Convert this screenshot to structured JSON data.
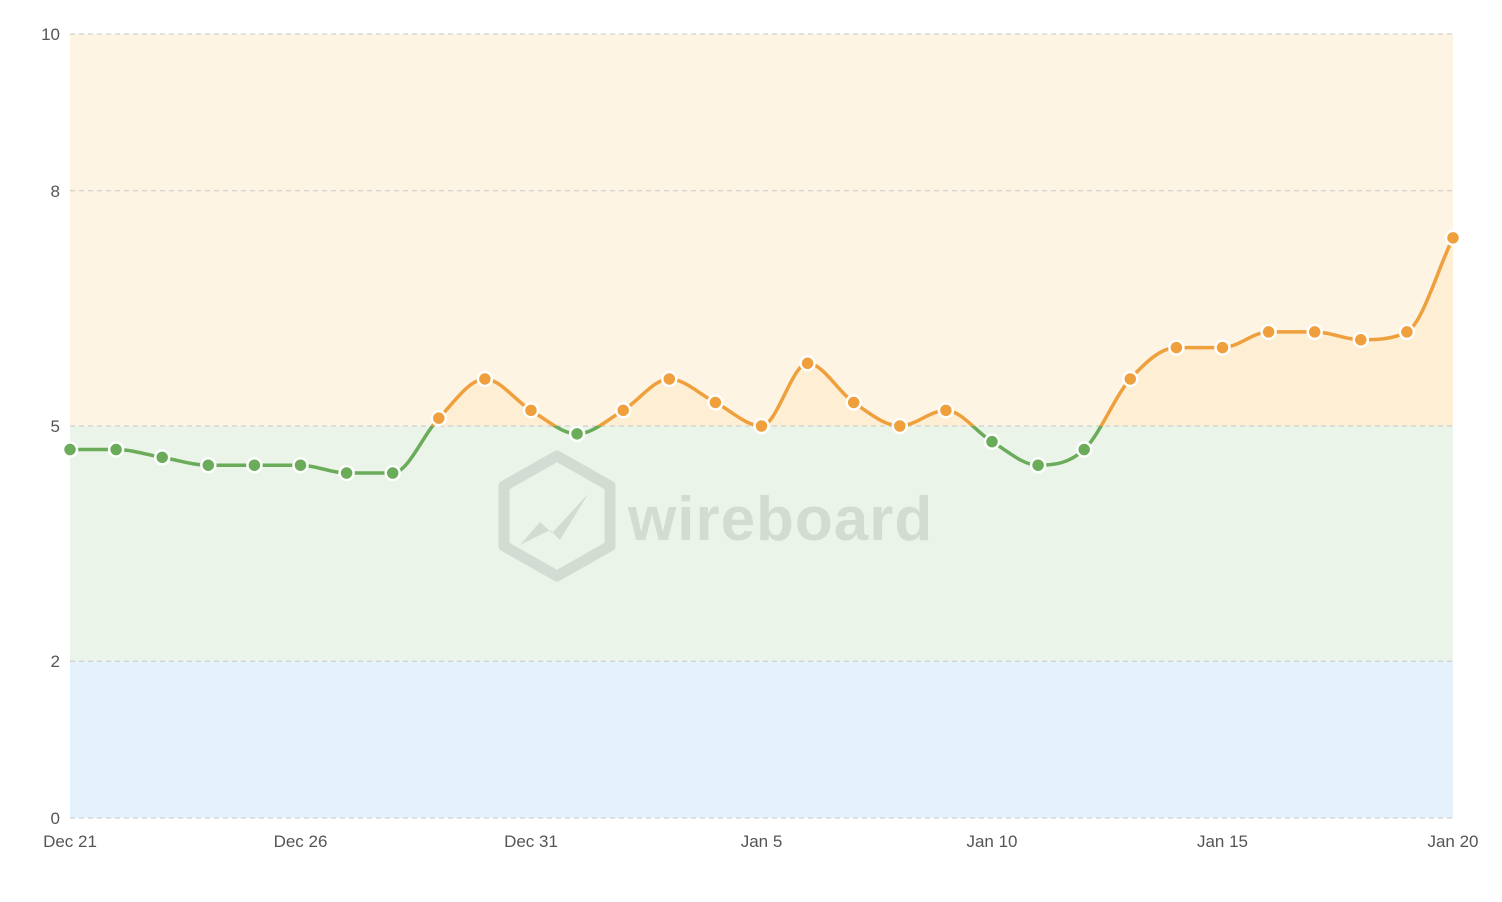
{
  "chart_data": {
    "type": "line",
    "x": [
      "Dec 21",
      "Dec 22",
      "Dec 23",
      "Dec 24",
      "Dec 25",
      "Dec 26",
      "Dec 27",
      "Dec 28",
      "Dec 29",
      "Dec 30",
      "Dec 31",
      "Jan 1",
      "Jan 2",
      "Jan 3",
      "Jan 4",
      "Jan 5",
      "Jan 6",
      "Jan 7",
      "Jan 8",
      "Jan 9",
      "Jan 10",
      "Jan 11",
      "Jan 12",
      "Jan 13",
      "Jan 14",
      "Jan 15",
      "Jan 16",
      "Jan 17",
      "Jan 18",
      "Jan 19",
      "Jan 20"
    ],
    "values": [
      4.7,
      4.7,
      4.6,
      4.5,
      4.5,
      4.5,
      4.4,
      4.4,
      5.1,
      5.6,
      5.2,
      4.9,
      5.2,
      5.6,
      5.3,
      5.0,
      5.8,
      5.3,
      5.0,
      5.2,
      4.8,
      4.5,
      4.7,
      5.6,
      6.0,
      6.0,
      6.2,
      6.2,
      6.1,
      6.2,
      7.4
    ],
    "xticks": [
      "Dec 21",
      "Dec 26",
      "Dec 31",
      "Jan 5",
      "Jan 10",
      "Jan 15",
      "Jan 20"
    ],
    "yticks": [
      0,
      2,
      5,
      8,
      10
    ],
    "ylim": [
      0,
      10
    ],
    "bands": [
      {
        "from": 0,
        "to": 2,
        "color": "#e6f2fb"
      },
      {
        "from": 2,
        "to": 5,
        "color": "#eaf4e8"
      },
      {
        "from": 5,
        "to": 10,
        "color": "#fdf4e3"
      }
    ],
    "threshold": 5,
    "colors": {
      "below": "#6aac5a",
      "above": "#efa03c",
      "grid": "#c8c8c8",
      "axis_text": "#555555"
    },
    "title": "",
    "xlabel": "",
    "ylabel": ""
  },
  "watermark": {
    "text": "wireboard",
    "icon": "wireboard-logo-icon"
  }
}
